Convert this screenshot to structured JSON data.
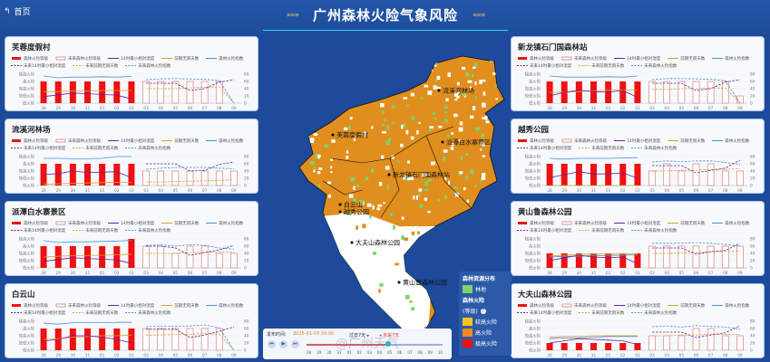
{
  "header": {
    "back_label": "首页",
    "title": "广州森林火险气象风险",
    "deco_left": "»»»",
    "deco_right": "«««"
  },
  "legend_items": [
    "森林火险等级",
    "未来森林火险等级",
    "14时最小相对湿度",
    "前期无雨天数",
    "森林火险指数",
    "未来14时最小相对湿度",
    "未来前期无雨天数",
    "未来森林火险指数"
  ],
  "axis": {
    "levels": [
      "低火险",
      "较低火险",
      "较高火险",
      "高火险",
      "极高火险"
    ],
    "right_ticks": [
      "0",
      "20",
      "40",
      "60",
      "80"
    ],
    "dates": [
      "28",
      "29",
      "30",
      "31",
      "01",
      "02",
      "03",
      "03",
      "04",
      "05",
      "06",
      "07",
      "08",
      "09"
    ]
  },
  "colors": {
    "level": "#ee1111",
    "future_level": "#d98080",
    "humidity": "#6a1fa0",
    "norain": "#d9a030",
    "index": "#4a90d0",
    "forest": "#7ed36a",
    "risk_high": "#f5c518",
    "risk_higher": "#f08a1c",
    "risk_extreme": "#ee1111"
  },
  "stations": [
    {
      "name": "芙蓉度假村",
      "past": {
        "level": [
          4,
          4,
          4,
          4,
          4,
          4,
          4
        ],
        "humidity": [
          18,
          23,
          28,
          26,
          24,
          22,
          12
        ],
        "norain": [
          32,
          32,
          34,
          34,
          35,
          35,
          35
        ],
        "index": [
          75,
          70,
          72,
          72,
          73,
          72,
          74
        ]
      },
      "future": {
        "level": [
          4,
          4,
          4,
          4,
          4,
          4,
          1
        ],
        "humidity": [
          55,
          55,
          55,
          35,
          40,
          58,
          65
        ],
        "norain": [
          40,
          40,
          40,
          42,
          44,
          45,
          0
        ],
        "index": [
          65,
          67,
          68,
          67,
          66,
          62,
          0
        ]
      }
    },
    {
      "name": "流溪河林场",
      "past": {
        "level": [
          4,
          4,
          4,
          4,
          4,
          4,
          4
        ],
        "humidity": [
          30,
          33,
          40,
          36,
          37,
          38,
          22
        ],
        "norain": [
          3,
          5,
          6,
          7,
          8,
          9,
          9
        ],
        "index": [
          75,
          75,
          74,
          74,
          75,
          80,
          80
        ]
      },
      "future": {
        "level": [
          3,
          3,
          3,
          3,
          3,
          3,
          3
        ],
        "humidity": [
          60,
          60,
          60,
          40,
          42,
          58,
          65
        ],
        "norain": [
          10,
          10,
          11,
          12,
          13,
          14,
          16
        ],
        "index": [
          45,
          48,
          50,
          50,
          50,
          48,
          46
        ]
      }
    },
    {
      "name": "派潭白水寨景区",
      "past": {
        "level": [
          4,
          4,
          4,
          4,
          4,
          4,
          5
        ],
        "humidity": [
          18,
          23,
          28,
          26,
          24,
          22,
          12
        ],
        "norain": [
          30,
          32,
          34,
          34,
          35,
          36,
          38
        ],
        "index": [
          75,
          70,
          72,
          72,
          73,
          74,
          76
        ]
      },
      "future": {
        "level": [
          4,
          4,
          3,
          4,
          4,
          3,
          3
        ],
        "humidity": [
          60,
          60,
          55,
          35,
          42,
          50,
          62
        ],
        "norain": [
          40,
          40,
          40,
          42,
          44,
          44,
          44
        ],
        "index": [
          62,
          64,
          60,
          64,
          62,
          55,
          52
        ]
      }
    },
    {
      "name": "白云山",
      "past": {
        "level": [
          4,
          4,
          4,
          4,
          4,
          4,
          4
        ],
        "humidity": [
          25,
          30,
          40,
          40,
          36,
          30,
          20
        ],
        "norain": [
          30,
          32,
          36,
          38,
          40,
          40,
          42
        ],
        "index": [
          75,
          72,
          76,
          76,
          76,
          77,
          77
        ]
      },
      "future": {
        "level": [
          4,
          4,
          4,
          4,
          4,
          4,
          1
        ],
        "humidity": [
          58,
          58,
          58,
          35,
          42,
          52,
          65
        ],
        "norain": [
          42,
          42,
          44,
          44,
          46,
          44,
          0
        ],
        "index": [
          65,
          67,
          66,
          67,
          70,
          62,
          0
        ]
      }
    },
    {
      "name": "新龙镇石门国森林站",
      "past": {
        "level": [
          4,
          4,
          4,
          4,
          4,
          4,
          4
        ],
        "humidity": [
          20,
          30,
          36,
          32,
          30,
          35,
          16
        ],
        "norain": [
          30,
          30,
          32,
          34,
          36,
          36,
          36
        ],
        "index": [
          75,
          72,
          72,
          72,
          73,
          72,
          75
        ]
      },
      "future": {
        "level": [
          4,
          4,
          4,
          4,
          4,
          4,
          2
        ],
        "humidity": [
          55,
          55,
          55,
          35,
          40,
          58,
          65
        ],
        "norain": [
          38,
          38,
          40,
          40,
          42,
          42,
          0
        ],
        "index": [
          65,
          68,
          68,
          67,
          66,
          62,
          0
        ]
      }
    },
    {
      "name": "越秀公园",
      "past": {
        "level": [
          4,
          4,
          4,
          4,
          4,
          4,
          4
        ],
        "humidity": [
          22,
          30,
          38,
          32,
          32,
          35,
          20
        ],
        "norain": [
          0,
          0,
          0,
          0,
          0,
          0,
          0
        ],
        "index": [
          75,
          73,
          75,
          75,
          75,
          76,
          77
        ]
      },
      "future": {
        "level": [
          3,
          4,
          3,
          4,
          4,
          3,
          3
        ],
        "humidity": [
          55,
          55,
          55,
          35,
          42,
          48,
          70
        ],
        "norain": [
          40,
          40,
          42,
          42,
          44,
          45,
          46
        ],
        "index": [
          65,
          68,
          66,
          68,
          68,
          64,
          58
        ]
      }
    },
    {
      "name": "黄山鲁森林公园",
      "past": {
        "level": [
          3,
          3,
          3,
          3,
          3,
          3,
          3
        ],
        "humidity": [
          20,
          28,
          35,
          30,
          28,
          30,
          12
        ],
        "norain": [
          33,
          35,
          37,
          38,
          38,
          38,
          38
        ],
        "index": [
          30,
          32,
          32,
          34,
          34,
          35,
          36
        ]
      },
      "future": {
        "level": [
          4,
          4,
          4,
          4,
          4,
          4,
          4
        ],
        "humidity": [
          55,
          55,
          55,
          38,
          45,
          48,
          68
        ],
        "norain": [
          40,
          40,
          42,
          42,
          44,
          46,
          46
        ],
        "index": [
          68,
          68,
          68,
          70,
          68,
          65,
          60
        ]
      }
    },
    {
      "name": "大夫山森林公园",
      "past": {
        "level": [
          2,
          2,
          2,
          2,
          2,
          2,
          2
        ],
        "humidity": [
          20,
          26,
          32,
          30,
          28,
          26,
          16
        ],
        "norain": [
          36,
          38,
          38,
          40,
          40,
          40,
          40
        ],
        "index": [
          32,
          34,
          34,
          36,
          38,
          38,
          38
        ]
      },
      "future": {
        "level": [
          3,
          3,
          3,
          4,
          4,
          3,
          3
        ],
        "humidity": [
          50,
          50,
          50,
          35,
          42,
          48,
          68
        ],
        "norain": [
          40,
          40,
          42,
          42,
          44,
          44,
          44
        ],
        "index": [
          65,
          67,
          64,
          68,
          66,
          64,
          58
        ]
      }
    }
  ],
  "map": {
    "labels": [
      "流溪河林场",
      "芙蓉度假村",
      "派潭白水寨景区",
      "新龙镇石门国森林站",
      "白云山",
      "越秀公园",
      "大夫山森林公园",
      "黄山鲁森林公园"
    ]
  },
  "map_legend": {
    "forest_title": "森林资源分布",
    "forest": "林地",
    "risk_title": "森林火险",
    "risk_sub": "(等级)",
    "help": "?",
    "high": "较高火险",
    "higher": "高火险",
    "extreme": "极高火险"
  },
  "time": {
    "label": "发布时间:",
    "value": "2025-01-03 20:00",
    "past": "过去7天 ▸",
    "future": "◂ 未来7天",
    "buttons": [
      "⏮",
      "▶",
      "⏭"
    ],
    "ticks": [
      "28",
      "29",
      "30",
      "31",
      "01",
      "02",
      "03",
      "04",
      "05",
      "06",
      "07",
      "08",
      "09",
      "10"
    ]
  },
  "watermark": "@广州天气"
}
